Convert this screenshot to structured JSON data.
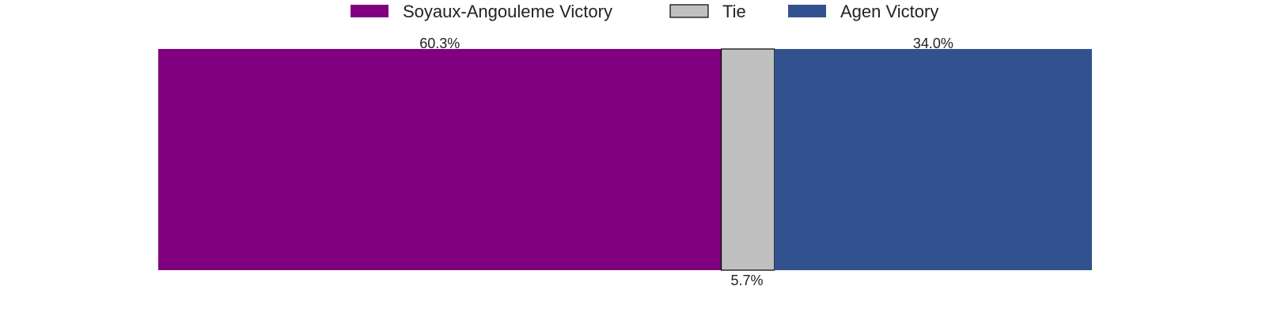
{
  "chart_data": {
    "type": "bar",
    "orientation": "horizontal-stacked",
    "legend_position": "top-center",
    "grid": false,
    "xlim": [
      0,
      100
    ],
    "series": [
      {
        "name": "Soyaux-Angouleme Victory",
        "value": 60.3,
        "label": "60.3%",
        "color": "#800080",
        "label_position": "above"
      },
      {
        "name": "Tie",
        "value": 5.7,
        "label": "5.7%",
        "color": "#c0c0c0",
        "label_position": "below"
      },
      {
        "name": "Agen Victory",
        "value": 34.0,
        "label": "34.0%",
        "color": "#32528f",
        "label_position": "above"
      }
    ]
  }
}
